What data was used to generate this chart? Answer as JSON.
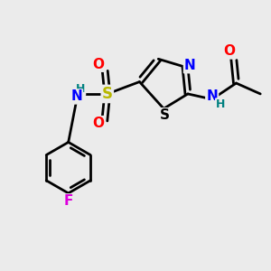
{
  "bg_color": "#ebebeb",
  "bond_color": "#000000",
  "bond_width": 2.0,
  "atom_colors": {
    "N": "#0000ff",
    "O": "#ff0000",
    "S_sulfonyl": "#b8b800",
    "S_thiazole": "#000000",
    "F": "#dd00dd",
    "H_teal": "#008080",
    "C": "#000000"
  },
  "font_size_atom": 11,
  "font_size_small": 9,
  "xlim": [
    0,
    10
  ],
  "ylim": [
    0,
    10
  ]
}
